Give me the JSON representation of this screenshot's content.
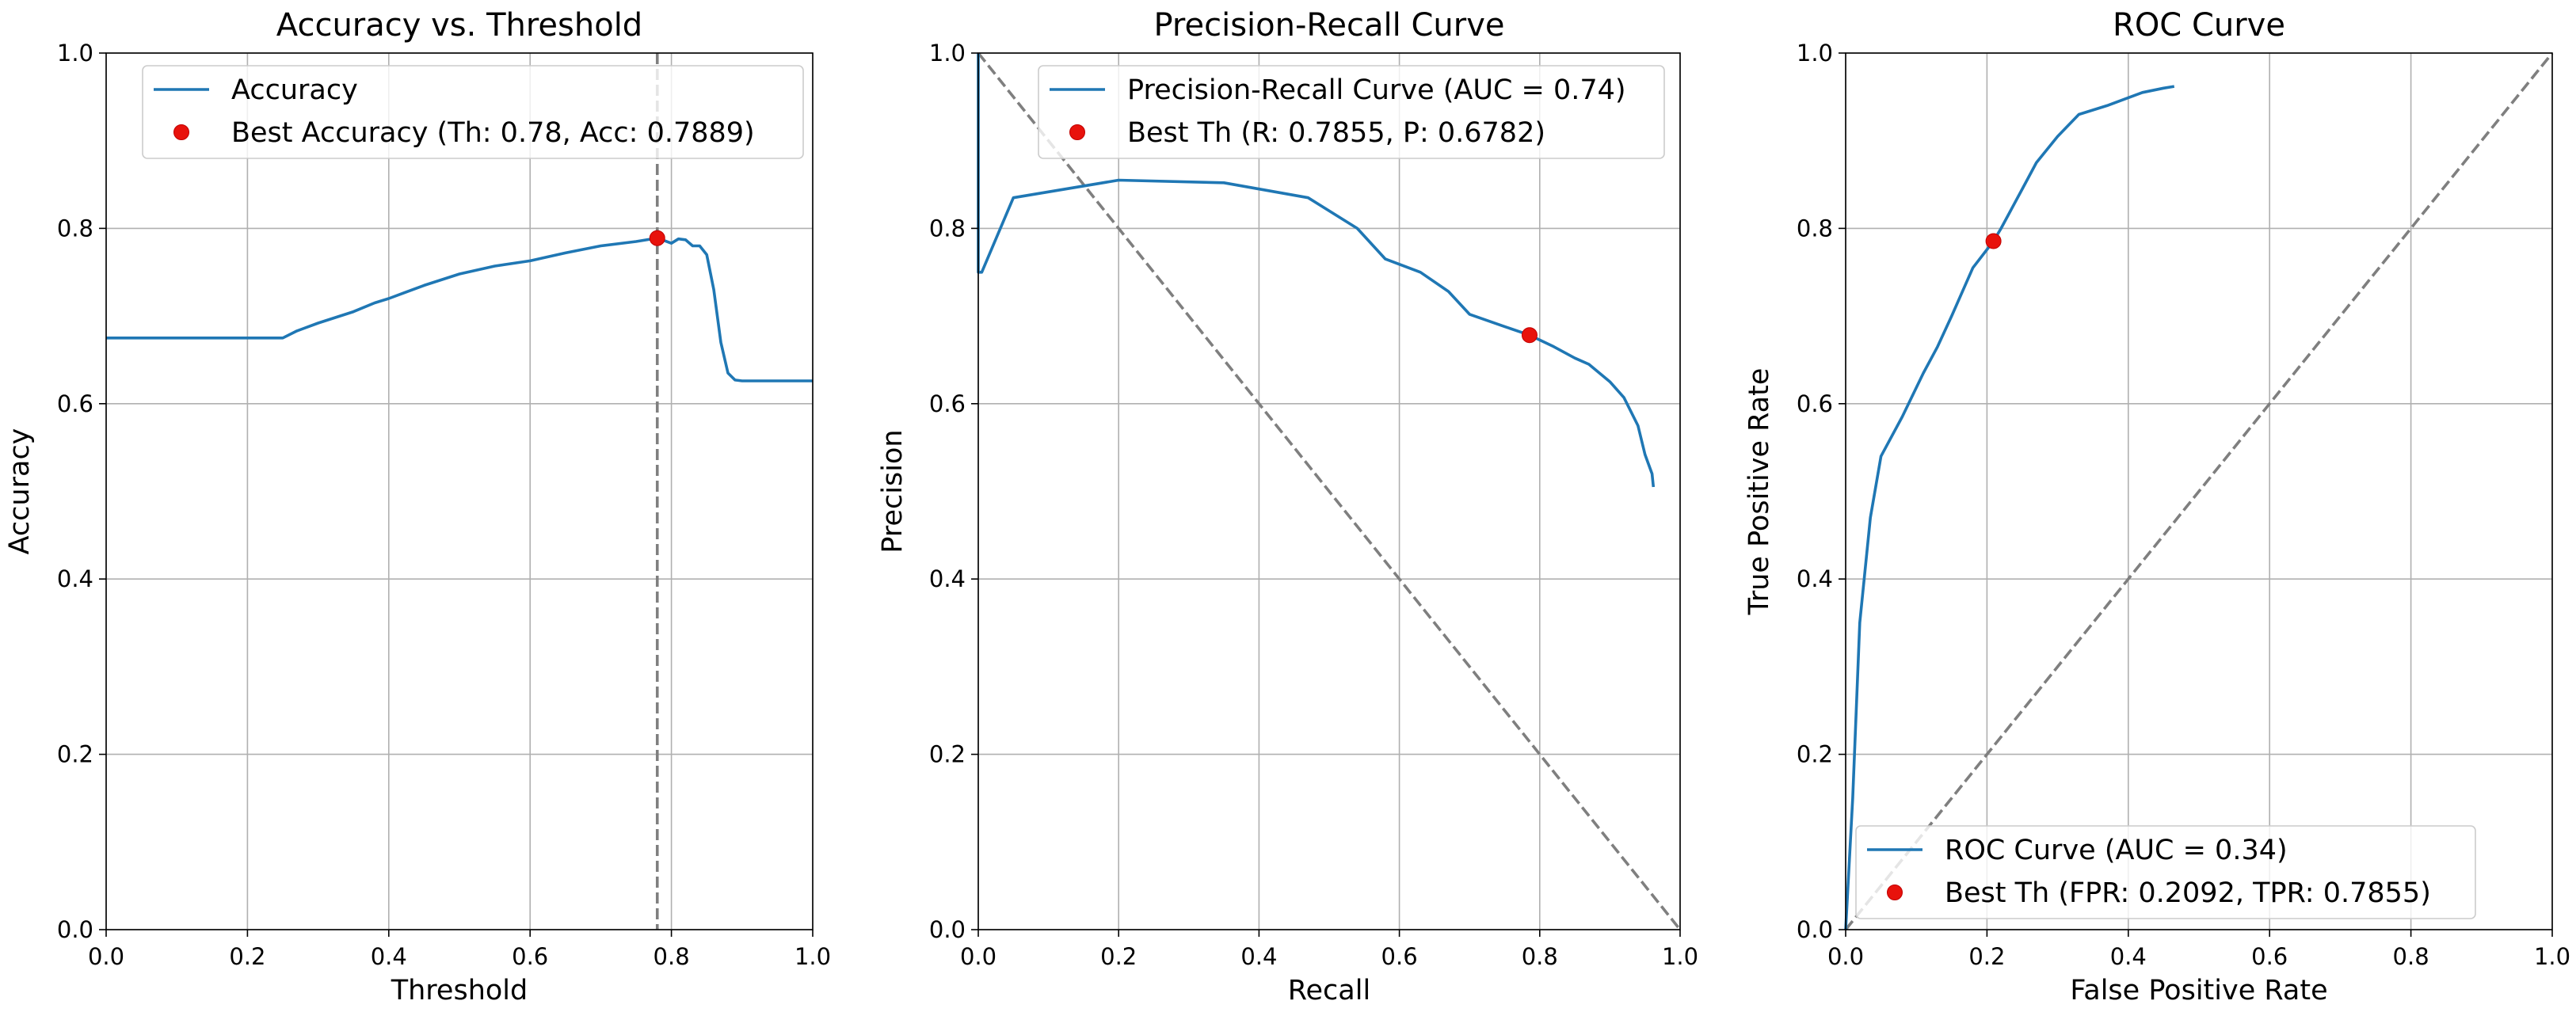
{
  "chart_data": [
    {
      "type": "line",
      "title": "Accuracy vs. Threshold",
      "xlabel": "Threshold",
      "ylabel": "Accuracy",
      "xlim": [
        0,
        1
      ],
      "ylim": [
        0,
        1
      ],
      "xticks": [
        "0.0",
        "0.2",
        "0.4",
        "0.6",
        "0.8",
        "1.0"
      ],
      "yticks": [
        "0.0",
        "0.2",
        "0.4",
        "0.6",
        "0.8",
        "1.0"
      ],
      "grid": true,
      "legend_position": "top-right",
      "series": [
        {
          "name": "Accuracy",
          "color": "#1f77b4",
          "x": [
            0.0,
            0.05,
            0.1,
            0.15,
            0.2,
            0.25,
            0.27,
            0.3,
            0.35,
            0.38,
            0.4,
            0.45,
            0.5,
            0.55,
            0.6,
            0.65,
            0.7,
            0.75,
            0.78,
            0.8,
            0.81,
            0.82,
            0.83,
            0.84,
            0.85,
            0.86,
            0.87,
            0.88,
            0.89,
            0.9,
            0.95,
            1.0
          ],
          "y": [
            0.675,
            0.675,
            0.675,
            0.675,
            0.675,
            0.675,
            0.683,
            0.692,
            0.705,
            0.715,
            0.72,
            0.735,
            0.748,
            0.757,
            0.763,
            0.772,
            0.78,
            0.785,
            0.789,
            0.783,
            0.788,
            0.787,
            0.78,
            0.78,
            0.77,
            0.73,
            0.67,
            0.635,
            0.627,
            0.626,
            0.626,
            0.626
          ]
        }
      ],
      "best_point": {
        "label": "Best Accuracy (Th: 0.78, Acc: 0.7889)",
        "x": 0.78,
        "y": 0.7889
      },
      "vline": {
        "x": 0.78,
        "style": "dashed",
        "color": "#7f7f7f"
      }
    },
    {
      "type": "line",
      "title": "Precision-Recall Curve",
      "xlabel": "Recall",
      "ylabel": "Precision",
      "xlim": [
        0,
        1
      ],
      "ylim": [
        0,
        1
      ],
      "xticks": [
        "0.0",
        "0.2",
        "0.4",
        "0.6",
        "0.8",
        "1.0"
      ],
      "yticks": [
        "0.0",
        "0.2",
        "0.4",
        "0.6",
        "0.8",
        "1.0"
      ],
      "grid": true,
      "legend_position": "top-right",
      "series": [
        {
          "name": "Precision-Recall Curve (AUC = 0.74)",
          "color": "#1f77b4",
          "x": [
            0.0,
            0.0,
            0.005,
            0.05,
            0.2,
            0.35,
            0.47,
            0.54,
            0.58,
            0.63,
            0.67,
            0.7,
            0.75,
            0.7855,
            0.82,
            0.85,
            0.87,
            0.9,
            0.92,
            0.94,
            0.95,
            0.96,
            0.962
          ],
          "y": [
            1.0,
            0.75,
            0.75,
            0.835,
            0.855,
            0.852,
            0.835,
            0.8,
            0.765,
            0.75,
            0.728,
            0.702,
            0.688,
            0.6782,
            0.665,
            0.652,
            0.645,
            0.625,
            0.607,
            0.575,
            0.542,
            0.52,
            0.505
          ]
        }
      ],
      "best_point": {
        "label": "Best Th (R: 0.7855, P: 0.6782)",
        "x": 0.7855,
        "y": 0.6782
      },
      "diagonal": {
        "from": [
          0,
          1
        ],
        "to": [
          1,
          0
        ],
        "style": "dashed",
        "color": "#7f7f7f"
      }
    },
    {
      "type": "line",
      "title": "ROC Curve",
      "xlabel": "False Positive Rate",
      "ylabel": "True Positive Rate",
      "xlim": [
        0,
        1
      ],
      "ylim": [
        0,
        1
      ],
      "xticks": [
        "0.0",
        "0.2",
        "0.4",
        "0.6",
        "0.8",
        "1.0"
      ],
      "yticks": [
        "0.0",
        "0.2",
        "0.4",
        "0.6",
        "0.8",
        "1.0"
      ],
      "grid": true,
      "legend_position": "bottom-right",
      "series": [
        {
          "name": "ROC Curve (AUC = 0.34)",
          "color": "#1f77b4",
          "x": [
            0.0,
            0.01,
            0.02,
            0.035,
            0.05,
            0.08,
            0.11,
            0.13,
            0.15,
            0.18,
            0.2092,
            0.22,
            0.25,
            0.27,
            0.3,
            0.33,
            0.37,
            0.42,
            0.45,
            0.465
          ],
          "y": [
            0.0,
            0.15,
            0.35,
            0.47,
            0.54,
            0.585,
            0.635,
            0.665,
            0.7,
            0.755,
            0.7855,
            0.8,
            0.845,
            0.875,
            0.905,
            0.93,
            0.94,
            0.955,
            0.96,
            0.962
          ]
        }
      ],
      "best_point": {
        "label": "Best Th (FPR: 0.2092, TPR: 0.7855)",
        "x": 0.2092,
        "y": 0.7855
      },
      "diagonal": {
        "from": [
          0,
          0
        ],
        "to": [
          1,
          1
        ],
        "style": "dashed",
        "color": "#7f7f7f"
      }
    }
  ]
}
